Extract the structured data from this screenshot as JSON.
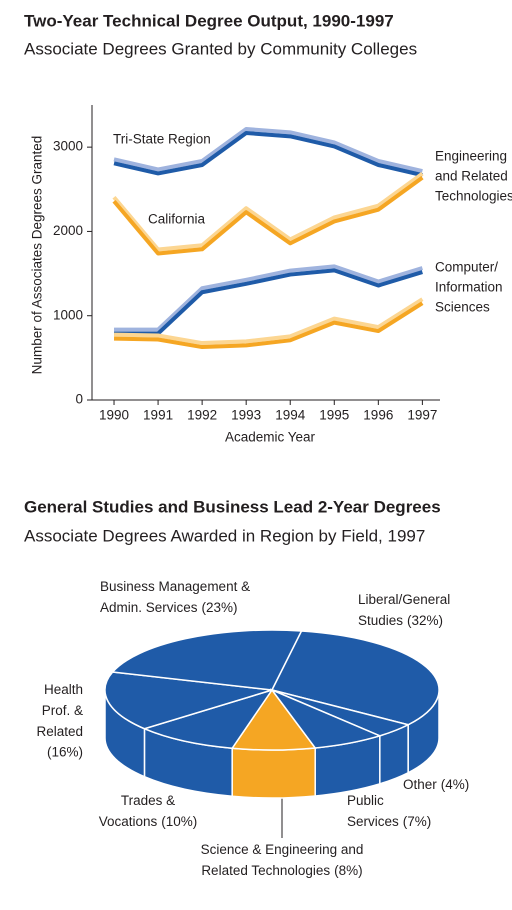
{
  "chart_data": [
    {
      "type": "line",
      "title": "Two-Year Technical Degree Output, 1990-1997",
      "subtitle": "Associate Degrees Granted by Community Colleges",
      "y_label": "Number of Associates Degrees Granted",
      "x_label": "Academic Year",
      "x": [
        1990,
        1991,
        1992,
        1993,
        1994,
        1995,
        1996,
        1997
      ],
      "xlim": [
        1989.5,
        1997.4
      ],
      "xticks": [
        1990,
        1991,
        1992,
        1993,
        1994,
        1995,
        1996,
        1997
      ],
      "ylim": [
        0,
        3500
      ],
      "yticks": [
        0,
        1000,
        2000,
        3000
      ],
      "series": [
        {
          "color": "#1f5ba8",
          "highlight_color": "#9fb3de",
          "values": [
            2820,
            2700,
            2800,
            3180,
            3140,
            3020,
            2800,
            2680
          ]
        },
        {
          "color": "#f5a623",
          "highlight_color": "#fcd692",
          "values": [
            2370,
            1750,
            1800,
            2240,
            1870,
            2130,
            2270,
            2650
          ]
        },
        {
          "color": "#1f5ba8",
          "highlight_color": "#9fb3de",
          "values": [
            800,
            800,
            1290,
            1390,
            1500,
            1550,
            1370,
            1530
          ]
        },
        {
          "color": "#f5a623",
          "highlight_color": "#fcd692",
          "values": [
            740,
            730,
            640,
            660,
            720,
            930,
            830,
            1160
          ]
        }
      ],
      "region_labels": [
        "Tri-State Region",
        "California"
      ],
      "field_labels": [
        [
          "Engineering",
          "and Related",
          "Technologies"
        ],
        [
          "Computer/",
          "Information",
          "Sciences"
        ]
      ]
    },
    {
      "type": "pie",
      "title": "General Studies and Business Lead 2-Year Degrees",
      "subtitle": "Associate Degrees Awarded in Region by Field, 1997",
      "categories": [
        [
          "Science & Engineering and",
          "Related Technologies"
        ],
        [
          "Trades &",
          "Vocations"
        ],
        [
          "Health",
          "Prof. &",
          "Related"
        ],
        [
          "Business Management &",
          "Admin. Services"
        ],
        [
          "Liberal/General",
          "Studies"
        ],
        [
          "Other"
        ],
        [
          "Public",
          "Services"
        ]
      ],
      "values": [
        8,
        10,
        16,
        23,
        32,
        4,
        7
      ],
      "value_labels": [
        "(8%)",
        "(10%)",
        "(16%)",
        "(23%)",
        "(32%)",
        "(4%)",
        "(7%)"
      ],
      "colors": [
        "#f5a623",
        "#1f5ba8",
        "#1f5ba8",
        "#1f5ba8",
        "#1f5ba8",
        "#1f5ba8",
        "#1f5ba8"
      ]
    }
  ]
}
